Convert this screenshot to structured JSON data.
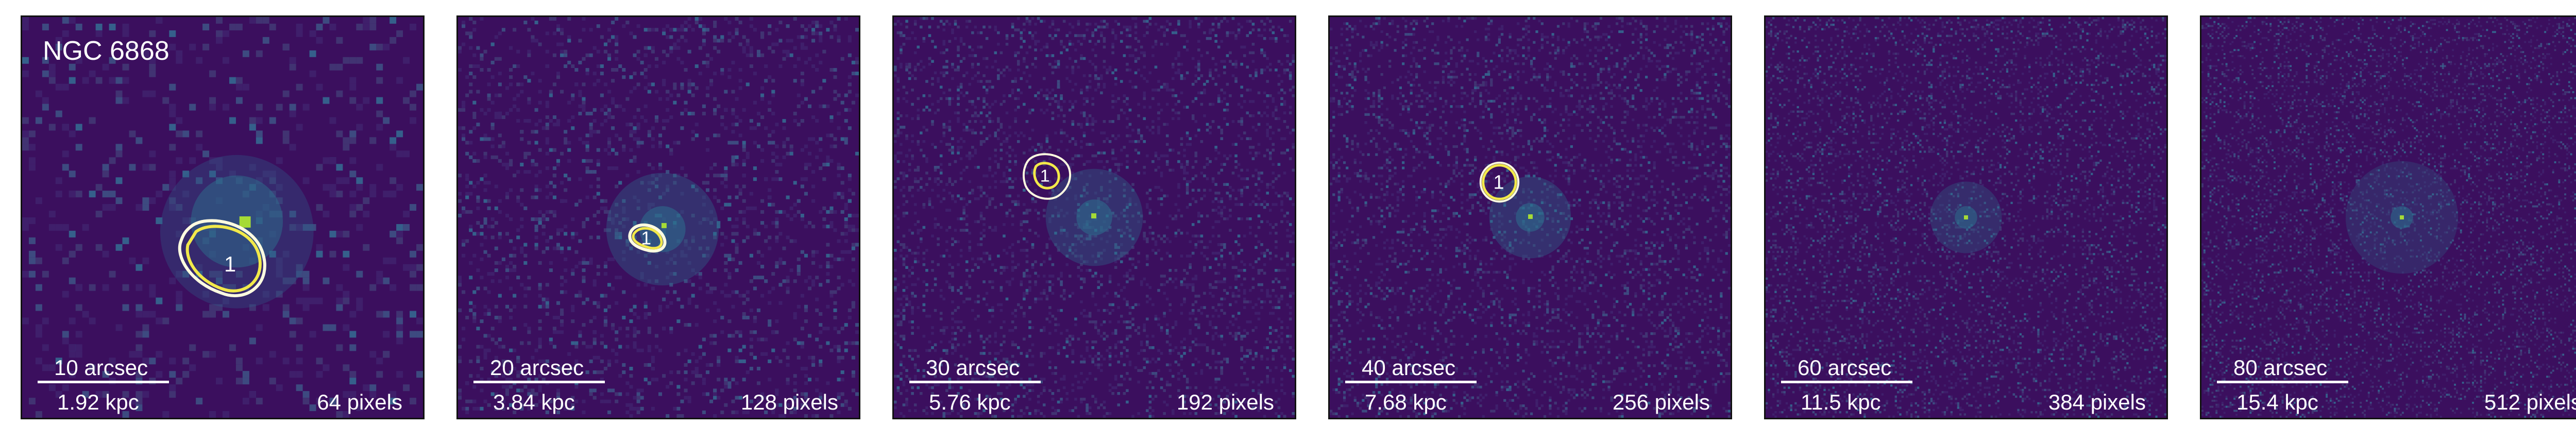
{
  "galaxy_name": "NGC 6868",
  "colors": {
    "background": "#440154",
    "noise_low": "#3b0f5e",
    "noise_high": "#2c6f8e",
    "core": "#a5db36",
    "contour_outer": "#fffce0",
    "contour_inner": "#f2e94a",
    "text": "#ffffff"
  },
  "panels": [
    {
      "scale_arcsec": "10 arcsec",
      "scale_kpc": "1.92 kpc",
      "binning": "64 pixels",
      "region_label": "1"
    },
    {
      "scale_arcsec": "20 arcsec",
      "scale_kpc": "3.84 kpc",
      "binning": "128 pixels",
      "region_label": "1"
    },
    {
      "scale_arcsec": "30 arcsec",
      "scale_kpc": "5.76 kpc",
      "binning": "192 pixels",
      "region_label": "1"
    },
    {
      "scale_arcsec": "40 arcsec",
      "scale_kpc": "7.68 kpc",
      "binning": "256 pixels",
      "region_label": "1"
    },
    {
      "scale_arcsec": "60 arcsec",
      "scale_kpc": "11.5 kpc",
      "binning": "384 pixels",
      "region_label": ""
    },
    {
      "scale_arcsec": "80 arcsec",
      "scale_kpc": "15.4 kpc",
      "binning": "512 pixels",
      "region_label": ""
    }
  ]
}
